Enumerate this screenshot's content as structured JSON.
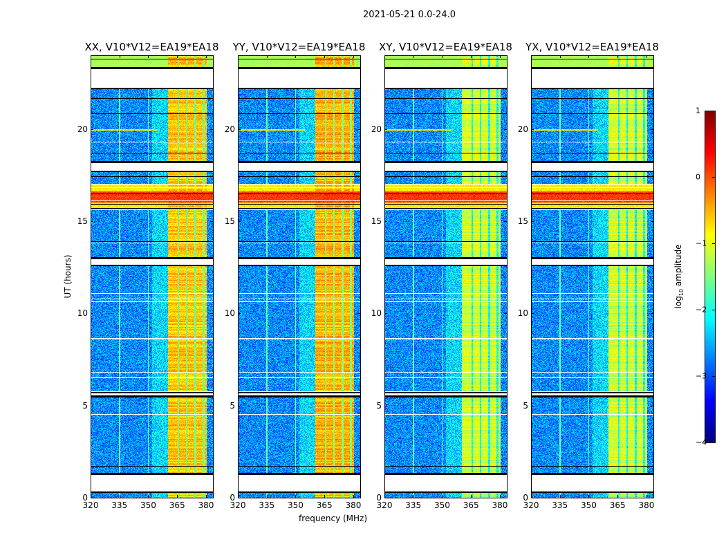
{
  "figure": {
    "title": "2021-05-21 0.0-24.0",
    "xlabel": "frequency (MHz)",
    "ylabel": "UT (hours)"
  },
  "chart_data": {
    "type": "heatmap",
    "title": "2021-05-21 0.0-24.0",
    "xlabel": "frequency (MHz)",
    "ylabel": "UT (hours)",
    "xlim": [
      320,
      383.6
    ],
    "ylim": [
      0,
      24
    ],
    "xticks": [
      "320",
      "335",
      "350",
      "365",
      "380"
    ],
    "xtick_values": [
      320,
      335,
      350,
      365,
      380
    ],
    "yticks": [
      "0",
      "5",
      "10",
      "15",
      "20"
    ],
    "ytick_values": [
      0,
      5,
      10,
      15,
      20
    ],
    "panels": [
      {
        "title": "XX, V10*V12=EA19*EA18",
        "band_level": 0.0
      },
      {
        "title": "YY, V10*V12=EA19*EA18",
        "band_level": 0.1
      },
      {
        "title": "XY, V10*V12=EA19*EA18",
        "band_level": -0.5
      },
      {
        "title": "YX, V10*V12=EA19*EA18",
        "band_level": -0.5
      }
    ],
    "baseline_log_amplitude": -2.7,
    "strong_band_mhz": [
      360.3,
      380.5
    ],
    "band_channel_edges_mhz": [
      365.6,
      370.0,
      374.5,
      378.8
    ],
    "rfi_hours": [
      [
        15.6,
        17.0
      ],
      [
        19.9,
        20.0
      ]
    ],
    "data_gap_hours": [
      [
        22.2,
        23.3
      ],
      [
        17.7,
        18.2
      ],
      [
        12.6,
        13.0
      ],
      [
        5.5,
        5.7
      ],
      [
        0.3,
        1.3
      ]
    ],
    "colorbar": {
      "label_base": "log",
      "label_sub": "10",
      "label_rest": " amplitude",
      "range": [
        -4,
        1
      ],
      "ticks": [
        "1",
        "0",
        "−1",
        "−2",
        "−3",
        "−4"
      ],
      "tick_values": [
        1,
        0,
        -1,
        -2,
        -3,
        -4
      ],
      "colormap": "jet"
    }
  }
}
